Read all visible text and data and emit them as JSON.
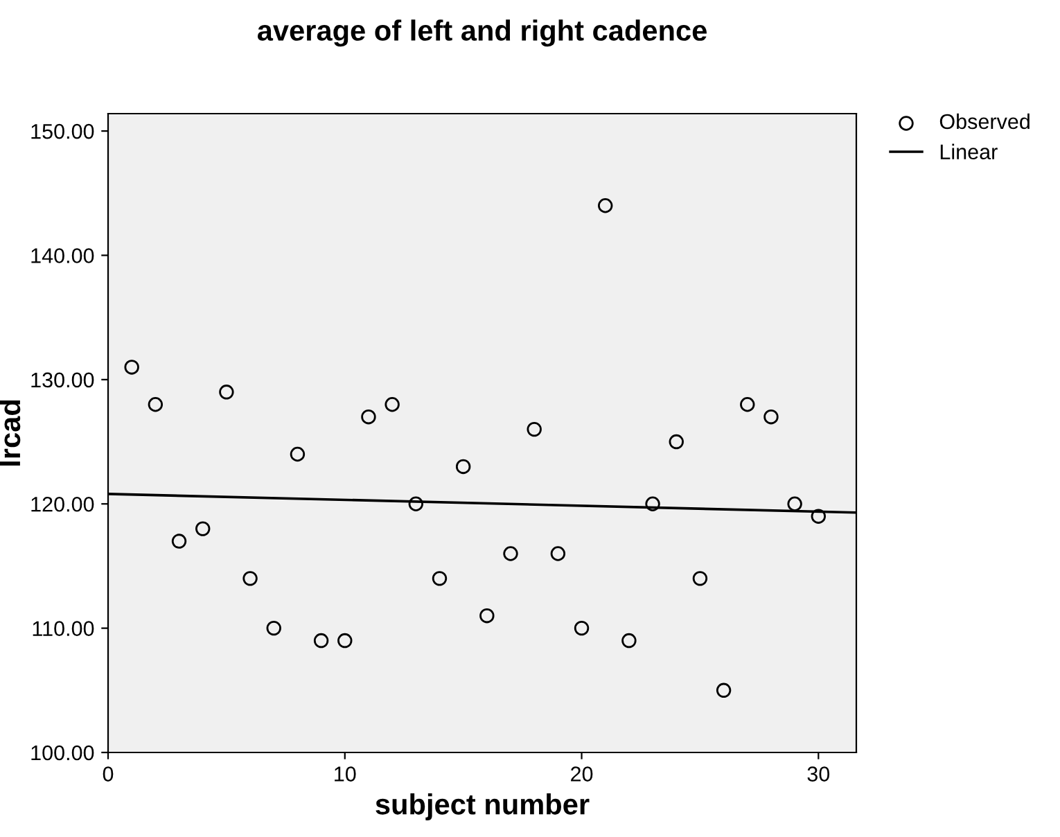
{
  "chart_data": {
    "type": "scatter",
    "title": "average of left and right cadence",
    "xlabel": "subject number",
    "ylabel": "lrcad",
    "xlim": [
      0,
      31.6
    ],
    "xticks": [
      0,
      10,
      20,
      30
    ],
    "ylim": [
      100,
      151.4
    ],
    "yticks": [
      {
        "value": 100,
        "label": "100.00"
      },
      {
        "value": 110,
        "label": "110.00"
      },
      {
        "value": 120,
        "label": "120.00"
      },
      {
        "value": 130,
        "label": "130.00"
      },
      {
        "value": 140,
        "label": "140.00"
      },
      {
        "value": 150,
        "label": "150.00"
      }
    ],
    "grid": false,
    "legend": "top right",
    "series": [
      {
        "name": "Observed",
        "marker": "circle",
        "color": "#000000",
        "x": [
          1,
          2,
          3,
          4,
          5,
          6,
          7,
          8,
          9,
          10,
          11,
          12,
          13,
          14,
          15,
          16,
          17,
          18,
          19,
          20,
          21,
          22,
          23,
          24,
          25,
          26,
          27,
          28,
          29,
          30
        ],
        "values": [
          131,
          128,
          117,
          118,
          129,
          114,
          110,
          124,
          109,
          109,
          127,
          128,
          120,
          114,
          123,
          111,
          116,
          126,
          116,
          110,
          144,
          109,
          120,
          125,
          114,
          105,
          128,
          127,
          120,
          119
        ]
      },
      {
        "name": "Linear",
        "type": "line",
        "marker": "none",
        "color": "#000000",
        "x": [
          0,
          31.6
        ],
        "values": [
          120.8,
          119.3
        ]
      }
    ]
  }
}
